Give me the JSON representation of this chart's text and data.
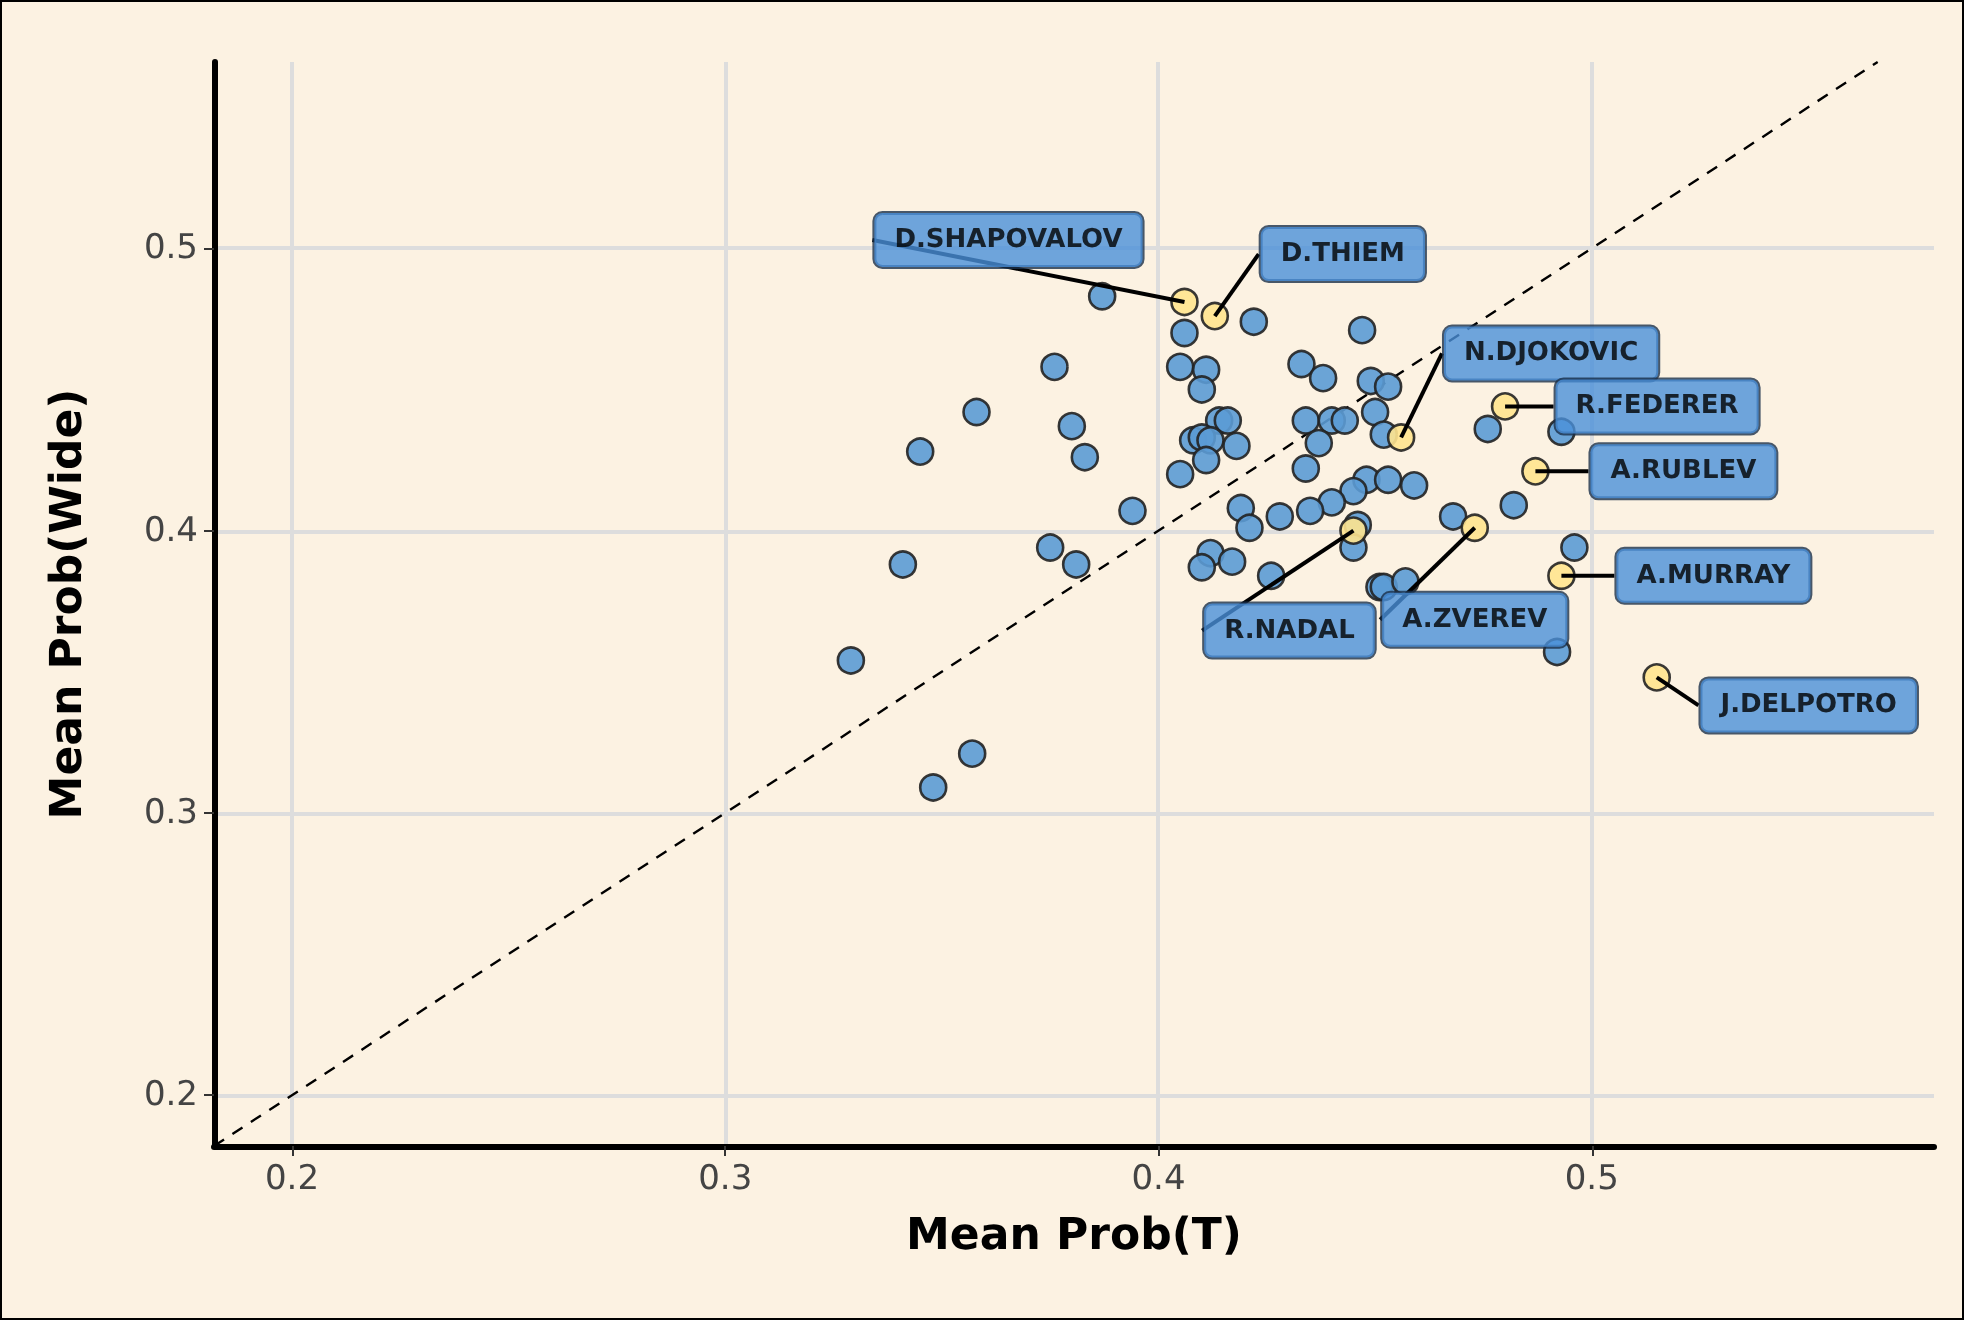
{
  "chart_data": {
    "type": "scatter",
    "xlabel": "Mean Prob(T)",
    "ylabel": "Mean Prob(Wide)",
    "xlim": [
      0.182,
      0.579
    ],
    "ylim": [
      0.182,
      0.566
    ],
    "xticks": [
      0.2,
      0.3,
      0.4,
      0.5
    ],
    "yticks": [
      0.2,
      0.3,
      0.4,
      0.5
    ],
    "grid": true,
    "marker": "circle",
    "series": [
      {
        "type": "scatter",
        "color": "#5b9bd5",
        "x": [
          0.329,
          0.387,
          0.376,
          0.358,
          0.345,
          0.38,
          0.383,
          0.394,
          0.375,
          0.381,
          0.341,
          0.406,
          0.422,
          0.447,
          0.405,
          0.411,
          0.41,
          0.433,
          0.438,
          0.449,
          0.453,
          0.414,
          0.416,
          0.434,
          0.44,
          0.443,
          0.45,
          0.408,
          0.41,
          0.412,
          0.418,
          0.437,
          0.411,
          0.405,
          0.434,
          0.448,
          0.453,
          0.445,
          0.44,
          0.435,
          0.419,
          0.421,
          0.428,
          0.412,
          0.41,
          0.417,
          0.426,
          0.451,
          0.446,
          0.445,
          0.452,
          0.476,
          0.493,
          0.482,
          0.468,
          0.459,
          0.452,
          0.457,
          0.496,
          0.492,
          0.357,
          0.348
        ],
        "values": [
          0.354,
          0.483,
          0.458,
          0.442,
          0.428,
          0.437,
          0.426,
          0.407,
          0.394,
          0.388,
          0.388,
          0.47,
          0.474,
          0.471,
          0.458,
          0.457,
          0.45,
          0.459,
          0.454,
          0.453,
          0.451,
          0.439,
          0.439,
          0.439,
          0.439,
          0.439,
          0.442,
          0.432,
          0.433,
          0.432,
          0.43,
          0.431,
          0.425,
          0.42,
          0.422,
          0.418,
          0.418,
          0.414,
          0.41,
          0.407,
          0.408,
          0.401,
          0.405,
          0.392,
          0.387,
          0.389,
          0.384,
          0.38,
          0.402,
          0.394,
          0.434,
          0.436,
          0.435,
          0.409,
          0.405,
          0.416,
          0.38,
          0.382,
          0.394,
          0.357,
          0.321,
          0.309
        ]
      },
      {
        "type": "scatter",
        "color": "#ffe48f",
        "x": [
          0.406,
          0.413,
          0.456,
          0.48,
          0.487,
          0.445,
          0.473,
          0.493,
          0.515
        ],
        "values": [
          0.481,
          0.476,
          0.433,
          0.444,
          0.421,
          0.4,
          0.401,
          0.384,
          0.348
        ]
      },
      {
        "type": "line",
        "color": "#000000",
        "line_style": "dashed",
        "marker": "none",
        "x": [
          0.182,
          0.566
        ],
        "values": [
          0.182,
          0.566
        ]
      }
    ],
    "annotations": [
      {
        "text": "D.SHAPOVALOV",
        "x": 0.406,
        "y": 0.481
      },
      {
        "text": "D.THIEM",
        "x": 0.413,
        "y": 0.476
      },
      {
        "text": "N.DJOKOVIC",
        "x": 0.456,
        "y": 0.433
      },
      {
        "text": "R.FEDERER",
        "x": 0.48,
        "y": 0.444
      },
      {
        "text": "A.RUBLEV",
        "x": 0.487,
        "y": 0.421
      },
      {
        "text": "R.NADAL",
        "x": 0.445,
        "y": 0.4
      },
      {
        "text": "A.ZVEREV",
        "x": 0.473,
        "y": 0.401
      },
      {
        "text": "A.MURRAY",
        "x": 0.493,
        "y": 0.384
      },
      {
        "text": "J.DELPOTRO",
        "x": 0.515,
        "y": 0.348
      }
    ]
  }
}
